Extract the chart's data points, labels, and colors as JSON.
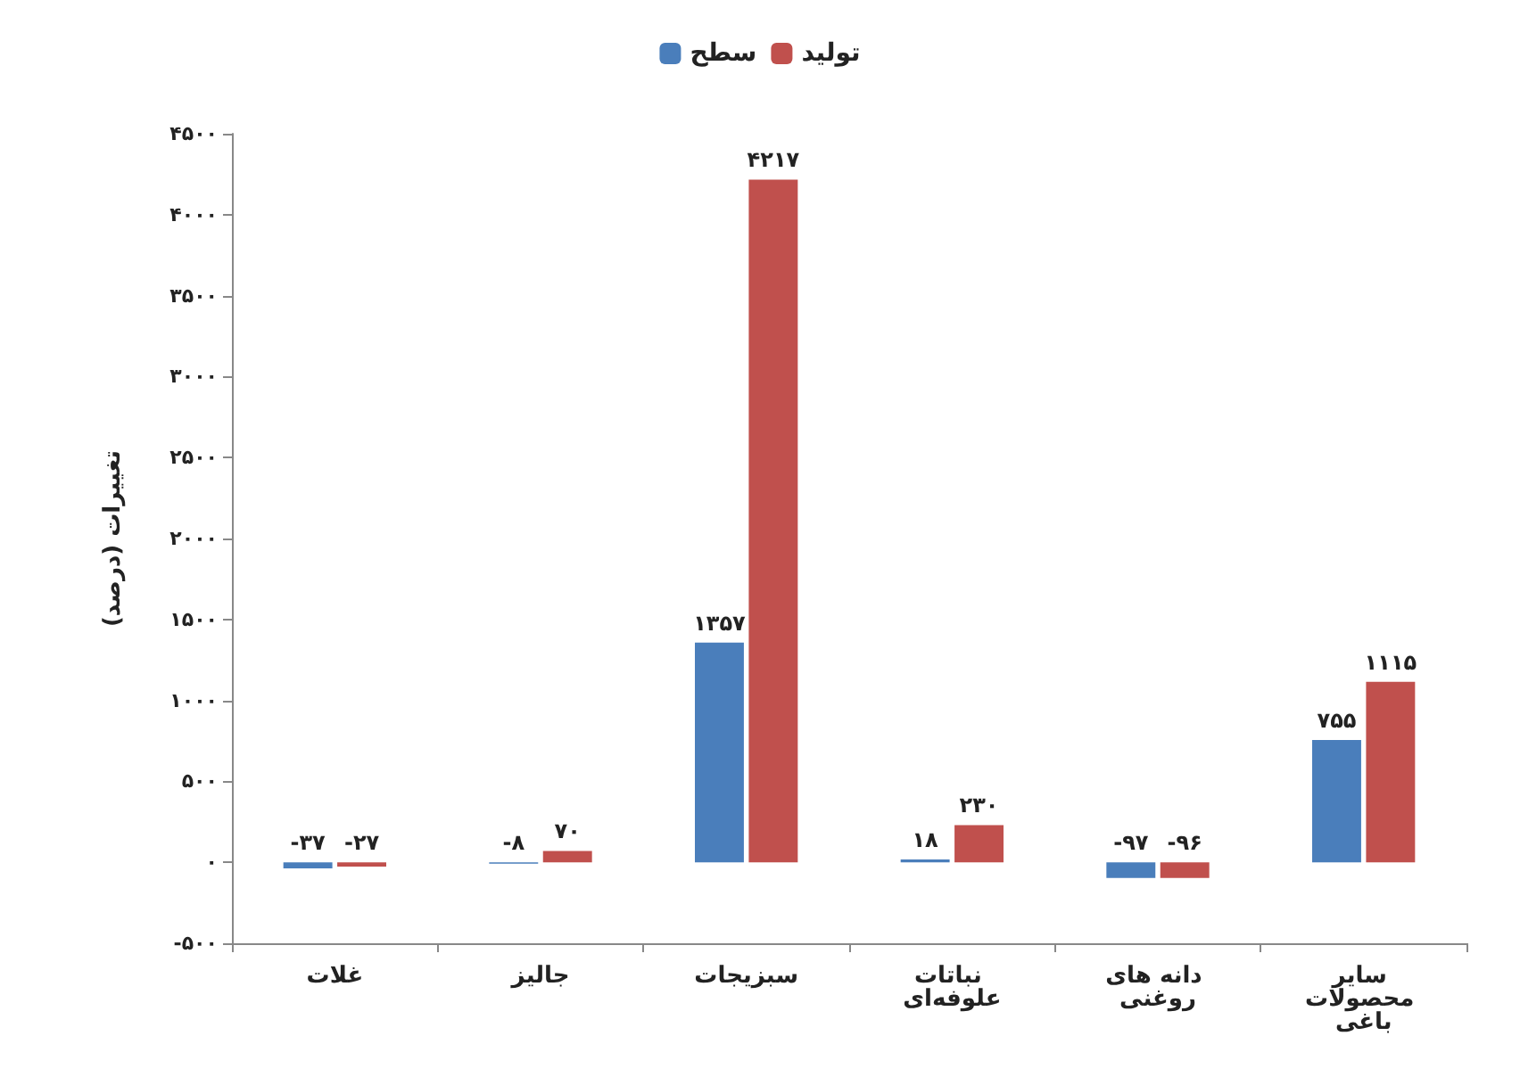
{
  "chart_data": {
    "type": "bar",
    "ylabel": "تغییرات (درصد)",
    "categories": [
      "غلات",
      "جالیز",
      "سبزیجات",
      "نباتات علوفه‌ای",
      "دانه های روغنی",
      "سایر محصولات باغی"
    ],
    "series": [
      {
        "name": "سطح",
        "color": "#4a7ebb",
        "values": [
          -37,
          -8,
          1357,
          18,
          -97,
          755
        ],
        "value_labels": [
          "-۳۷",
          "-۸",
          "۱۳۵۷",
          "۱۸",
          "-۹۷",
          "۷۵۵"
        ]
      },
      {
        "name": "تولید",
        "color": "#c0504d",
        "values": [
          -27,
          70,
          4217,
          230,
          -96,
          1115
        ],
        "value_labels": [
          "-۲۷",
          "۷۰",
          "۴۲۱۷",
          "۲۳۰",
          "-۹۶",
          "۱۱۱۵"
        ]
      }
    ],
    "ylim": [
      -500,
      4500
    ],
    "yticks": [
      {
        "value": -500,
        "label": "-۵۰۰"
      },
      {
        "value": 0,
        "label": "۰"
      },
      {
        "value": 500,
        "label": "۵۰۰"
      },
      {
        "value": 1000,
        "label": "۱۰۰۰"
      },
      {
        "value": 1500,
        "label": "۱۵۰۰"
      },
      {
        "value": 2000,
        "label": "۲۰۰۰"
      },
      {
        "value": 2500,
        "label": "۲۵۰۰"
      },
      {
        "value": 3000,
        "label": "۳۰۰۰"
      },
      {
        "value": 3500,
        "label": "۳۵۰۰"
      },
      {
        "value": 4000,
        "label": "۴۰۰۰"
      },
      {
        "value": 4500,
        "label": "۴۵۰۰"
      }
    ],
    "grid": false,
    "legend": "top"
  }
}
